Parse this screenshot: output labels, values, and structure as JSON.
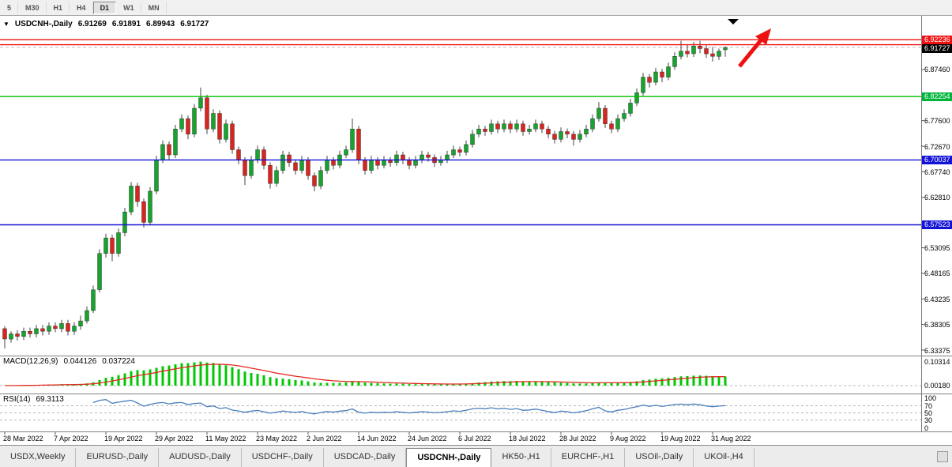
{
  "toolbar": {
    "timeframes": [
      {
        "label": "5",
        "active": false
      },
      {
        "label": "M30",
        "active": false
      },
      {
        "label": "H1",
        "active": false
      },
      {
        "label": "H4",
        "active": false
      },
      {
        "label": "D1",
        "active": true
      },
      {
        "label": "W1",
        "active": false
      },
      {
        "label": "MN",
        "active": false
      }
    ]
  },
  "chart": {
    "symbol_marker": "▼",
    "title": "USDCNH-,Daily",
    "open": "6.91269",
    "high": "6.91891",
    "low": "6.89943",
    "close": "6.91727"
  },
  "price_axis": {
    "ticks": [
      {
        "label": "6.87460",
        "price": 6.8746
      },
      {
        "label": "6.77600",
        "price": 6.776
      },
      {
        "label": "6.72670",
        "price": 6.7267
      },
      {
        "label": "6.67740",
        "price": 6.6774
      },
      {
        "label": "6.62810",
        "price": 6.6281
      },
      {
        "label": "6.53095",
        "price": 6.53095
      },
      {
        "label": "6.48165",
        "price": 6.48165
      },
      {
        "label": "6.43235",
        "price": 6.43235
      },
      {
        "label": "6.38305",
        "price": 6.38305
      },
      {
        "label": "6.33375",
        "price": 6.33375
      }
    ],
    "labels": [
      {
        "text": "6.92236",
        "price": 6.92236,
        "bg": "#ee1111",
        "nudge": -6
      },
      {
        "text": "6.91727",
        "price": 6.91727,
        "bg": "#000000",
        "nudge": 2
      },
      {
        "text": "6.82254",
        "price": 6.82254,
        "bg": "#00b43c",
        "nudge": 0
      },
      {
        "text": "6.70037",
        "price": 6.70037,
        "bg": "#1313d8",
        "nudge": 0
      },
      {
        "text": "6.57523",
        "price": 6.57523,
        "bg": "#1313d8",
        "nudge": 0
      }
    ]
  },
  "hlines": [
    {
      "price": 6.932,
      "color": "#ee1111"
    },
    {
      "price": 6.92236,
      "color": "#ee1111"
    },
    {
      "price": 6.82254,
      "color": "#00c000"
    },
    {
      "price": 6.70037,
      "color": "#1313d8"
    },
    {
      "price": 6.57523,
      "color": "#1313d8"
    }
  ],
  "annotations": {
    "trend_arrow_color": "#ee1111",
    "top_triangle_marker": "▼"
  },
  "indicators": {
    "macd": {
      "title": "MACD(12,26,9)",
      "value": "0.044126",
      "signal_value": "0.037224",
      "axis_top": "0.10314",
      "axis_zero": "0.00180",
      "hist_color": "#00c800",
      "signal_color": "#e02a1f"
    },
    "rsi": {
      "title": "RSI(14)",
      "value": "69.3113",
      "axis": [
        "100",
        "70",
        "50",
        "30",
        "0"
      ],
      "levels": [
        70,
        50,
        30
      ],
      "line_color": "#4a7ebb"
    }
  },
  "chart_data": {
    "type": "candlestick",
    "symbol": "USDCNH",
    "timeframe": "Daily",
    "up_color": "#18a22e",
    "down_color": "#d6261f",
    "wick_color": "#444444",
    "ylim": [
      6.33375,
      6.978
    ],
    "x_labels": [
      {
        "text": "28 Mar 2022",
        "index": 0
      },
      {
        "text": "7 Apr 2022",
        "index": 8
      },
      {
        "text": "19 Apr 2022",
        "index": 16
      },
      {
        "text": "29 Apr 2022",
        "index": 24
      },
      {
        "text": "11 May 2022",
        "index": 32
      },
      {
        "text": "23 May 2022",
        "index": 40
      },
      {
        "text": "2 Jun 2022",
        "index": 48
      },
      {
        "text": "14 Jun 2022",
        "index": 56
      },
      {
        "text": "24 Jun 2022",
        "index": 64
      },
      {
        "text": "6 Jul 2022",
        "index": 72
      },
      {
        "text": "18 Jul 2022",
        "index": 80
      },
      {
        "text": "28 Jul 2022",
        "index": 88
      },
      {
        "text": "9 Aug 2022",
        "index": 96
      },
      {
        "text": "19 Aug 2022",
        "index": 104
      },
      {
        "text": "31 Aug 2022",
        "index": 112
      }
    ],
    "candles": [
      [
        6.375,
        6.38,
        6.337,
        6.355
      ],
      [
        6.355,
        6.37,
        6.348,
        6.365
      ],
      [
        6.365,
        6.372,
        6.352,
        6.36
      ],
      [
        6.36,
        6.377,
        6.353,
        6.37
      ],
      [
        6.37,
        6.377,
        6.358,
        6.365
      ],
      [
        6.365,
        6.382,
        6.358,
        6.375
      ],
      [
        6.375,
        6.382,
        6.362,
        6.37
      ],
      [
        6.37,
        6.387,
        6.363,
        6.38
      ],
      [
        6.38,
        6.387,
        6.368,
        6.375
      ],
      [
        6.375,
        6.392,
        6.368,
        6.385
      ],
      [
        6.385,
        6.392,
        6.362,
        6.37
      ],
      [
        6.37,
        6.387,
        6.363,
        6.38
      ],
      [
        6.38,
        6.4,
        6.373,
        6.39
      ],
      [
        6.39,
        6.418,
        6.385,
        6.41
      ],
      [
        6.41,
        6.458,
        6.405,
        6.45
      ],
      [
        6.45,
        6.528,
        6.445,
        6.52
      ],
      [
        6.52,
        6.558,
        6.512,
        6.55
      ],
      [
        6.55,
        6.556,
        6.505,
        6.52
      ],
      [
        6.52,
        6.568,
        6.514,
        6.56
      ],
      [
        6.56,
        6.608,
        6.553,
        6.6
      ],
      [
        6.6,
        6.658,
        6.594,
        6.65
      ],
      [
        6.65,
        6.656,
        6.61,
        6.62
      ],
      [
        6.62,
        6.626,
        6.57,
        6.58
      ],
      [
        6.58,
        6.648,
        6.574,
        6.64
      ],
      [
        6.64,
        6.708,
        6.634,
        6.7
      ],
      [
        6.7,
        6.738,
        6.694,
        6.73
      ],
      [
        6.73,
        6.736,
        6.7,
        6.71
      ],
      [
        6.71,
        6.768,
        6.704,
        6.76
      ],
      [
        6.76,
        6.788,
        6.754,
        6.78
      ],
      [
        6.78,
        6.786,
        6.74,
        6.75
      ],
      [
        6.75,
        6.808,
        6.744,
        6.8
      ],
      [
        6.8,
        6.84,
        6.794,
        6.82
      ],
      [
        6.82,
        6.826,
        6.75,
        6.76
      ],
      [
        6.76,
        6.798,
        6.754,
        6.79
      ],
      [
        6.79,
        6.796,
        6.732,
        6.74
      ],
      [
        6.74,
        6.778,
        6.734,
        6.77
      ],
      [
        6.77,
        6.776,
        6.712,
        6.72
      ],
      [
        6.72,
        6.726,
        6.692,
        6.7
      ],
      [
        6.7,
        6.706,
        6.652,
        6.67
      ],
      [
        6.67,
        6.708,
        6.664,
        6.7
      ],
      [
        6.7,
        6.728,
        6.694,
        6.72
      ],
      [
        6.72,
        6.726,
        6.682,
        6.69
      ],
      [
        6.69,
        6.696,
        6.645,
        6.655
      ],
      [
        6.655,
        6.688,
        6.649,
        6.68
      ],
      [
        6.68,
        6.718,
        6.674,
        6.71
      ],
      [
        6.71,
        6.716,
        6.687,
        6.695
      ],
      [
        6.695,
        6.701,
        6.672,
        6.68
      ],
      [
        6.68,
        6.708,
        6.674,
        6.7
      ],
      [
        6.7,
        6.706,
        6.662,
        6.67
      ],
      [
        6.67,
        6.676,
        6.64,
        6.65
      ],
      [
        6.65,
        6.688,
        6.644,
        6.68
      ],
      [
        6.68,
        6.708,
        6.674,
        6.7
      ],
      [
        6.7,
        6.706,
        6.682,
        6.69
      ],
      [
        6.69,
        6.718,
        6.684,
        6.71
      ],
      [
        6.71,
        6.728,
        6.704,
        6.72
      ],
      [
        6.72,
        6.78,
        6.714,
        6.76
      ],
      [
        6.76,
        6.766,
        6.692,
        6.7
      ],
      [
        6.7,
        6.706,
        6.672,
        6.68
      ],
      [
        6.68,
        6.708,
        6.674,
        6.7
      ],
      [
        6.7,
        6.706,
        6.682,
        6.69
      ],
      [
        6.69,
        6.708,
        6.684,
        6.7
      ],
      [
        6.7,
        6.706,
        6.687,
        6.695
      ],
      [
        6.695,
        6.718,
        6.689,
        6.71
      ],
      [
        6.71,
        6.716,
        6.692,
        6.7
      ],
      [
        6.7,
        6.706,
        6.682,
        6.69
      ],
      [
        6.69,
        6.708,
        6.684,
        6.7
      ],
      [
        6.7,
        6.718,
        6.694,
        6.71
      ],
      [
        6.71,
        6.716,
        6.697,
        6.705
      ],
      [
        6.705,
        6.711,
        6.687,
        6.695
      ],
      [
        6.695,
        6.708,
        6.689,
        6.7
      ],
      [
        6.7,
        6.718,
        6.694,
        6.71
      ],
      [
        6.71,
        6.728,
        6.704,
        6.72
      ],
      [
        6.72,
        6.726,
        6.707,
        6.715
      ],
      [
        6.715,
        6.738,
        6.709,
        6.73
      ],
      [
        6.73,
        6.758,
        6.724,
        6.75
      ],
      [
        6.75,
        6.768,
        6.744,
        6.76
      ],
      [
        6.76,
        6.766,
        6.747,
        6.755
      ],
      [
        6.755,
        6.778,
        6.749,
        6.77
      ],
      [
        6.77,
        6.776,
        6.752,
        6.76
      ],
      [
        6.76,
        6.778,
        6.754,
        6.77
      ],
      [
        6.77,
        6.776,
        6.752,
        6.76
      ],
      [
        6.76,
        6.778,
        6.754,
        6.77
      ],
      [
        6.77,
        6.776,
        6.747,
        6.755
      ],
      [
        6.755,
        6.768,
        6.749,
        6.76
      ],
      [
        6.76,
        6.778,
        6.754,
        6.77
      ],
      [
        6.77,
        6.776,
        6.752,
        6.76
      ],
      [
        6.76,
        6.766,
        6.742,
        6.75
      ],
      [
        6.75,
        6.756,
        6.732,
        6.74
      ],
      [
        6.74,
        6.763,
        6.734,
        6.755
      ],
      [
        6.755,
        6.761,
        6.742,
        6.75
      ],
      [
        6.75,
        6.756,
        6.728,
        6.74
      ],
      [
        6.74,
        6.758,
        6.734,
        6.75
      ],
      [
        6.75,
        6.768,
        6.744,
        6.76
      ],
      [
        6.76,
        6.788,
        6.754,
        6.78
      ],
      [
        6.78,
        6.812,
        6.774,
        6.8
      ],
      [
        6.8,
        6.806,
        6.762,
        6.77
      ],
      [
        6.77,
        6.776,
        6.752,
        6.76
      ],
      [
        6.76,
        6.788,
        6.754,
        6.78
      ],
      [
        6.78,
        6.798,
        6.774,
        6.79
      ],
      [
        6.79,
        6.818,
        6.784,
        6.81
      ],
      [
        6.81,
        6.838,
        6.804,
        6.83
      ],
      [
        6.83,
        6.868,
        6.824,
        6.86
      ],
      [
        6.86,
        6.866,
        6.84,
        6.85
      ],
      [
        6.85,
        6.878,
        6.844,
        6.87
      ],
      [
        6.87,
        6.876,
        6.85,
        6.86
      ],
      [
        6.86,
        6.888,
        6.854,
        6.88
      ],
      [
        6.88,
        6.908,
        6.874,
        6.9
      ],
      [
        6.9,
        6.93,
        6.894,
        6.91
      ],
      [
        6.91,
        6.922,
        6.898,
        6.905
      ],
      [
        6.905,
        6.928,
        6.899,
        6.92
      ],
      [
        6.92,
        6.93,
        6.906,
        6.915
      ],
      [
        6.915,
        6.921,
        6.897,
        6.905
      ],
      [
        6.905,
        6.918,
        6.89,
        6.9
      ],
      [
        6.9,
        6.915,
        6.893,
        6.91
      ],
      [
        6.91269,
        6.91891,
        6.89943,
        6.91727
      ]
    ]
  },
  "tabs": [
    {
      "label": "USDX,Weekly",
      "active": false
    },
    {
      "label": "EURUSD-,Daily",
      "active": false
    },
    {
      "label": "AUDUSD-,Daily",
      "active": false
    },
    {
      "label": "USDCHF-,Daily",
      "active": false
    },
    {
      "label": "USDCAD-,Daily",
      "active": false
    },
    {
      "label": "USDCNH-,Daily",
      "active": true
    },
    {
      "label": "HK50-,H1",
      "active": false
    },
    {
      "label": "EURCHF-,H1",
      "active": false
    },
    {
      "label": "USOil-,Daily",
      "active": false
    },
    {
      "label": "UKOil-,H4",
      "active": false
    }
  ]
}
